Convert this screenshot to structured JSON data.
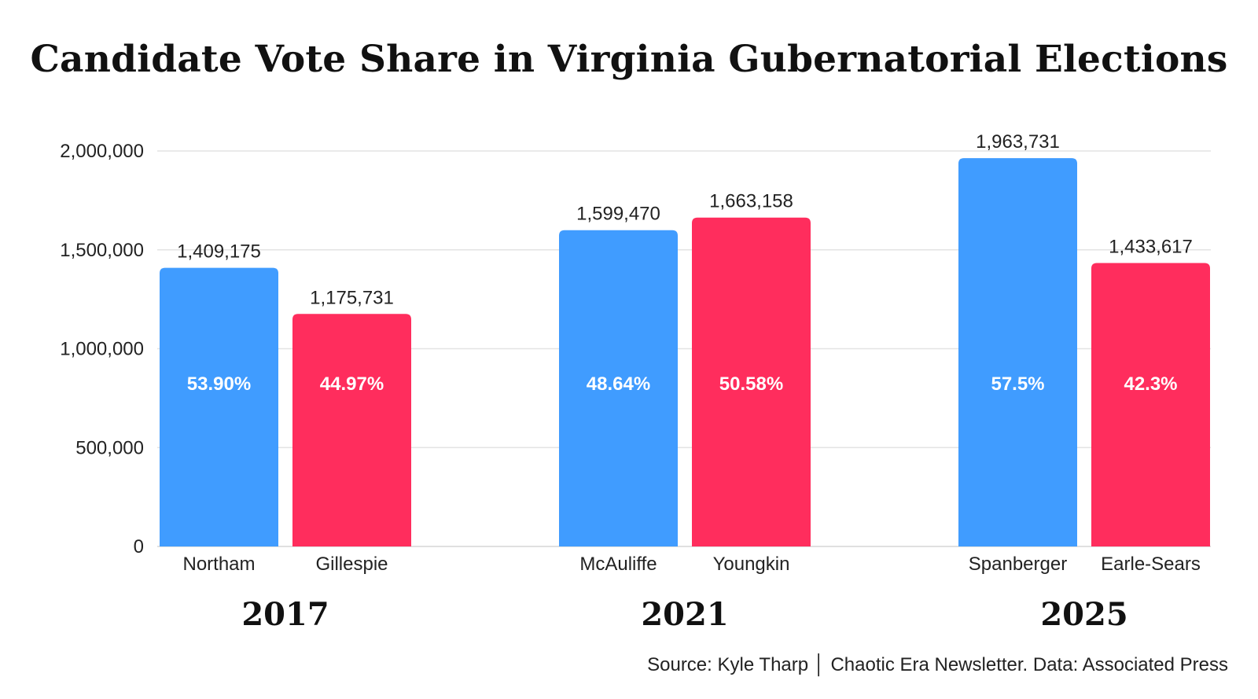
{
  "chart_data": {
    "type": "bar",
    "title": "Candidate Vote Share in Virginia Gubernatorial Elections",
    "xlabel": "",
    "ylabel": "",
    "ylim": [
      0,
      2000000
    ],
    "yticks": [
      0,
      500000,
      1000000,
      1500000,
      2000000
    ],
    "ytick_labels": [
      "0",
      "500,000",
      "1,000,000",
      "1,500,000",
      "2,000,000"
    ],
    "grid": true,
    "groups": [
      {
        "year": "2017",
        "bars": [
          {
            "candidate": "Northam",
            "votes": 1409175,
            "votes_label": "1,409,175",
            "share": "53.90%",
            "color": "#409cff"
          },
          {
            "candidate": "Gillespie",
            "votes": 1175731,
            "votes_label": "1,175,731",
            "share": "44.97%",
            "color": "#ff2d5d"
          }
        ]
      },
      {
        "year": "2021",
        "bars": [
          {
            "candidate": "McAuliffe",
            "votes": 1599470,
            "votes_label": "1,599,470",
            "share": "48.64%",
            "color": "#409cff"
          },
          {
            "candidate": "Youngkin",
            "votes": 1663158,
            "votes_label": "1,663,158",
            "share": "50.58%",
            "color": "#ff2d5d"
          }
        ]
      },
      {
        "year": "2025",
        "bars": [
          {
            "candidate": "Spanberger",
            "votes": 1963731,
            "votes_label": "1,963,731",
            "share": "57.5%",
            "color": "#409cff"
          },
          {
            "candidate": "Earle-Sears",
            "votes": 1433617,
            "votes_label": "1,433,617",
            "share": "42.3%",
            "color": "#ff2d5d"
          }
        ]
      }
    ],
    "source": "Source: Kyle Tharp │ Chaotic Era Newsletter. Data: Associated Press"
  }
}
